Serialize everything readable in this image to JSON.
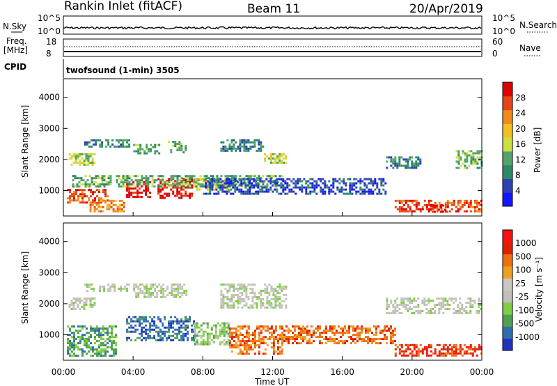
{
  "header": {
    "station": "Rankin Inlet (fitACF)",
    "beam": "Beam 11",
    "date": "20/Apr/2019"
  },
  "top_panels": {
    "nsky_label": "N.Sky",
    "nsearch_label": "N.Search",
    "noise_ticks_left": [
      "10^5",
      "10^0"
    ],
    "noise_ticks_right": [
      "10^5",
      "10^0"
    ],
    "freq_label_1": "Freq.",
    "freq_label_2": "[MHz]",
    "freq_ticks": [
      "18",
      "8"
    ],
    "nave_label": "Nave",
    "nave_ticks": [
      "60",
      "0"
    ],
    "cpid_label": "CPID",
    "cpid_text": "twofsound (1-min) 3505"
  },
  "colors": {
    "power": [
      "#1515ff",
      "#2f3fb8",
      "#2d8a66",
      "#54a46a",
      "#cde040",
      "#f4c020",
      "#f08a1a",
      "#e84515",
      "#e00000"
    ],
    "velocity": [
      "#2030c0",
      "#2f6fb0",
      "#4fa050",
      "#7fd040",
      "#c0c0b8",
      "#c8c8c0",
      "#f0a020",
      "#f07010",
      "#e02000",
      "#ff1010"
    ]
  },
  "chart_data": [
    {
      "type": "heatmap",
      "name": "power",
      "ylabel": "Slant Range [km]",
      "xlabel": "Time UT",
      "x_ticks": [
        "00:00",
        "04:00",
        "08:00",
        "12:00",
        "16:00",
        "20:00",
        "00:00"
      ],
      "y_ticks": [
        1000,
        2000,
        3000,
        4000
      ],
      "ylim": [
        180,
        4600
      ],
      "xlim_hours": [
        0,
        24
      ],
      "colorbar_label": "Power [dB]",
      "colorbar_ticks": [
        "28",
        "24",
        "20",
        "16",
        "12",
        "8",
        "4"
      ],
      "regions": [
        {
          "x0": 0.2,
          "x1": 2.5,
          "y0": 600,
          "y1": 1050,
          "level": 7
        },
        {
          "x0": 1.5,
          "x1": 3.5,
          "y0": 300,
          "y1": 700,
          "level": 6
        },
        {
          "x0": 3.6,
          "x1": 5.0,
          "y0": 800,
          "y1": 1300,
          "level": 8
        },
        {
          "x0": 5.4,
          "x1": 7.4,
          "y0": 750,
          "y1": 1400,
          "level": 8
        },
        {
          "x0": 7.5,
          "x1": 9.5,
          "y0": 1000,
          "y1": 1400,
          "level": 5
        },
        {
          "x0": 0.5,
          "x1": 12.5,
          "y0": 1100,
          "y1": 1500,
          "level": 3
        },
        {
          "x0": 8.0,
          "x1": 18.5,
          "y0": 900,
          "y1": 1400,
          "level": 1
        },
        {
          "x0": 0.3,
          "x1": 1.8,
          "y0": 1800,
          "y1": 2200,
          "level": 4
        },
        {
          "x0": 1.2,
          "x1": 3.8,
          "y0": 2400,
          "y1": 2650,
          "level": 2
        },
        {
          "x0": 4.0,
          "x1": 5.5,
          "y0": 2200,
          "y1": 2500,
          "level": 3
        },
        {
          "x0": 6.0,
          "x1": 7.0,
          "y0": 2200,
          "y1": 2600,
          "level": 3
        },
        {
          "x0": 9.0,
          "x1": 11.5,
          "y0": 2300,
          "y1": 2650,
          "level": 2
        },
        {
          "x0": 11.5,
          "x1": 12.8,
          "y0": 1900,
          "y1": 2200,
          "level": 4
        },
        {
          "x0": 18.5,
          "x1": 20.5,
          "y0": 1700,
          "y1": 2100,
          "level": 2
        },
        {
          "x0": 19.0,
          "x1": 24.0,
          "y0": 300,
          "y1": 700,
          "level": 7
        },
        {
          "x0": 21.0,
          "x1": 22.0,
          "y0": 300,
          "y1": 550,
          "level": 8
        },
        {
          "x0": 22.5,
          "x1": 24.0,
          "y0": 1700,
          "y1": 2300,
          "level": 3
        }
      ]
    },
    {
      "type": "heatmap",
      "name": "velocity",
      "ylabel": "Slant Range [km]",
      "xlabel": "Time UT",
      "x_ticks": [
        "00:00",
        "04:00",
        "08:00",
        "12:00",
        "16:00",
        "20:00",
        "00:00"
      ],
      "y_ticks": [
        1000,
        2000,
        3000,
        4000
      ],
      "ylim": [
        180,
        4600
      ],
      "xlim_hours": [
        0,
        24
      ],
      "colorbar_label": "Velocity [m s⁻¹]",
      "colorbar_ticks": [
        "1000",
        "500",
        "100",
        "25",
        "-25",
        "-100",
        "-500",
        "-1000"
      ],
      "regions": [
        {
          "x0": 0.2,
          "x1": 3.0,
          "y0": 300,
          "y1": 1300,
          "level": 2
        },
        {
          "x0": 3.6,
          "x1": 7.5,
          "y0": 800,
          "y1": 1600,
          "level": 1
        },
        {
          "x0": 7.5,
          "x1": 9.5,
          "y0": 700,
          "y1": 1400,
          "level": 3
        },
        {
          "x0": 9.5,
          "x1": 12.5,
          "y0": 400,
          "y1": 1300,
          "level": 7
        },
        {
          "x0": 12.5,
          "x1": 19.0,
          "y0": 700,
          "y1": 1300,
          "level": 7
        },
        {
          "x0": 19.0,
          "x1": 24.0,
          "y0": 300,
          "y1": 700,
          "level": 8
        },
        {
          "x0": 0.3,
          "x1": 1.8,
          "y0": 1800,
          "y1": 2200,
          "level": 4
        },
        {
          "x0": 1.2,
          "x1": 3.8,
          "y0": 2400,
          "y1": 2650,
          "level": 4
        },
        {
          "x0": 4.0,
          "x1": 7.0,
          "y0": 2200,
          "y1": 2650,
          "level": 4
        },
        {
          "x0": 9.0,
          "x1": 12.8,
          "y0": 1900,
          "y1": 2650,
          "level": 4
        },
        {
          "x0": 18.5,
          "x1": 24.0,
          "y0": 1700,
          "y1": 2200,
          "level": 4
        }
      ]
    }
  ]
}
